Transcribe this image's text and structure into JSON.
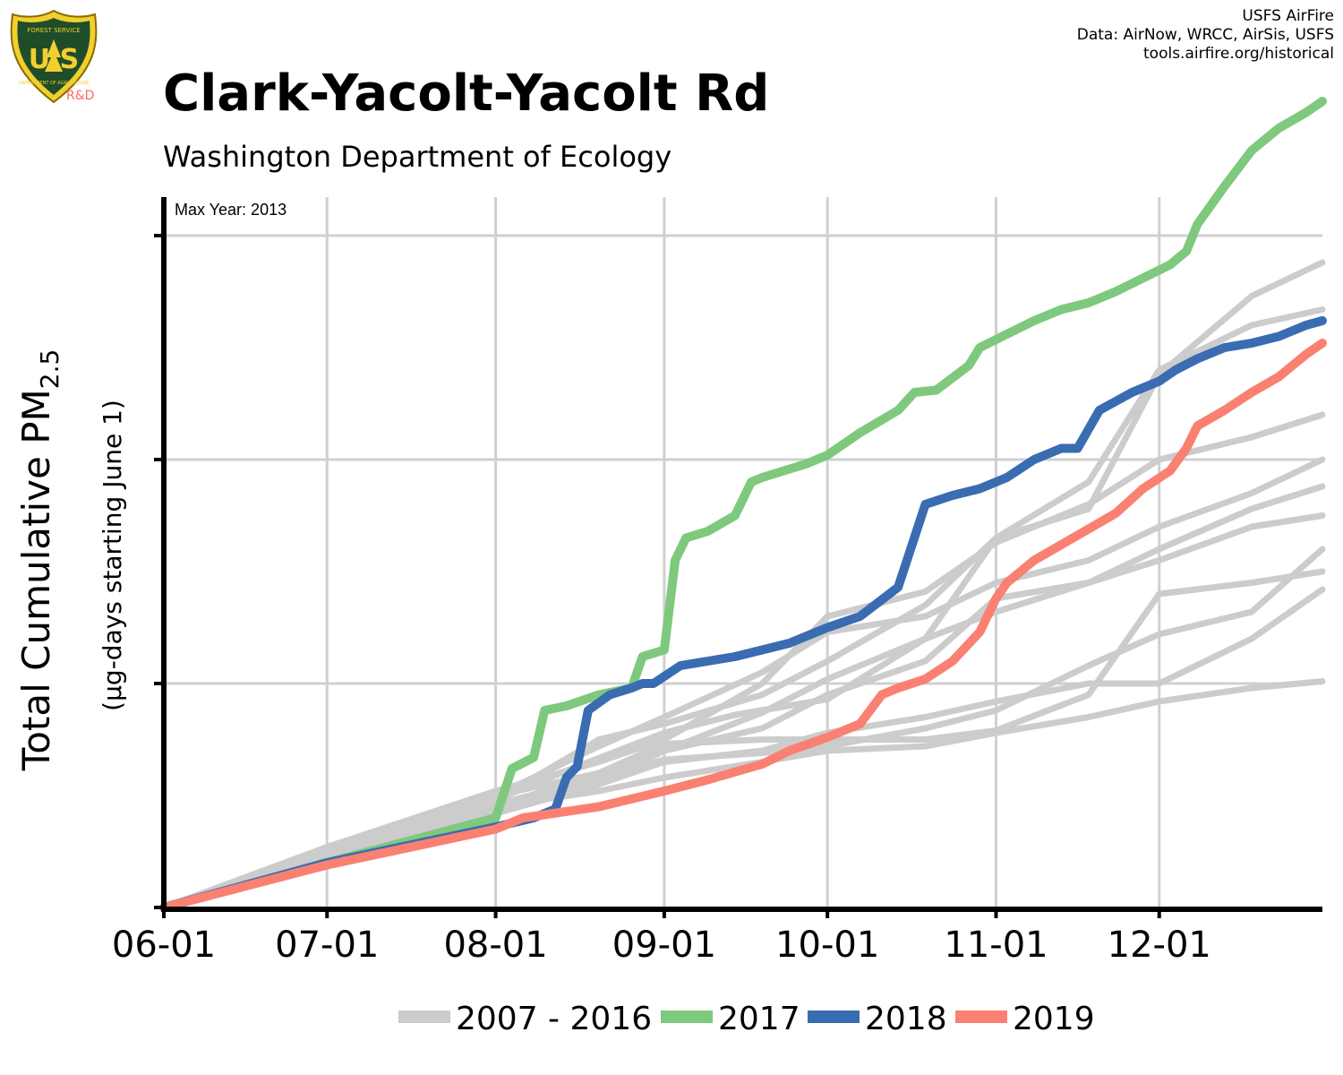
{
  "header": {
    "title": "Clark-Yacolt-Yacolt Rd",
    "subtitle": "Washington Department of Ecology",
    "logo_mark": "U S",
    "logo_text_top": "FOREST SERVICE",
    "logo_text_bottom": "DEPARTMENT OF AGRICULTURE",
    "logo_label": "R&D"
  },
  "credits": {
    "line1": "USFS AirFire",
    "line2": "Data: AirNow, WRCC, AirSis, USFS",
    "line3": "tools.airfire.org/historical"
  },
  "chart_data": {
    "type": "line",
    "annotation": "Max Year: 2013",
    "ylabel_main": "Total Cumulative PM",
    "ylabel_sub": "2.5",
    "ylabel_units": "(µg-days starting June 1)",
    "x_ticks": [
      "06-01",
      "07-01",
      "08-01",
      "09-01",
      "10-01",
      "11-01",
      "12-01"
    ],
    "x_tick_days": [
      0,
      30,
      61,
      92,
      122,
      153,
      183
    ],
    "xlim": [
      0,
      213
    ],
    "ylim": [
      0,
      4
    ],
    "y_gridlines": [
      1,
      2,
      3
    ],
    "y_ticks_labeled": false,
    "grid": true,
    "legend": {
      "placement": "bottom",
      "entries": [
        {
          "label": "2007 - 2016",
          "color": "#cccccc"
        },
        {
          "label": "2017",
          "color": "#7ec97d"
        },
        {
          "label": "2018",
          "color": "#3a6cb2"
        },
        {
          "label": "2019",
          "color": "#fa8072"
        }
      ]
    },
    "series": [
      {
        "group": "2007 - 2016",
        "color": "#cccccc",
        "x": [
          0,
          30,
          61,
          75,
          92,
          105,
          122,
          140,
          153,
          170,
          183,
          200,
          213
        ],
        "y": [
          0,
          0.23,
          0.48,
          0.62,
          0.78,
          0.86,
          0.93,
          1.2,
          1.65,
          1.78,
          2.38,
          2.73,
          2.88
        ]
      },
      {
        "group": "2007 - 2016",
        "color": "#cccccc",
        "x": [
          0,
          30,
          61,
          80,
          92,
          110,
          122,
          140,
          153,
          170,
          183,
          200,
          213
        ],
        "y": [
          0,
          0.24,
          0.48,
          0.75,
          0.82,
          0.95,
          1.1,
          1.35,
          1.65,
          1.9,
          2.4,
          2.6,
          2.67
        ]
      },
      {
        "group": "2007 - 2016",
        "color": "#cccccc",
        "x": [
          0,
          30,
          61,
          80,
          92,
          110,
          122,
          140,
          153,
          170,
          183,
          200,
          213
        ],
        "y": [
          0,
          0.25,
          0.5,
          0.72,
          0.85,
          1.05,
          1.23,
          1.3,
          1.45,
          1.55,
          1.7,
          1.85,
          2.0
        ]
      },
      {
        "group": "2007 - 2016",
        "color": "#cccccc",
        "x": [
          0,
          30,
          61,
          80,
          92,
          110,
          122,
          140,
          153,
          170,
          183,
          200,
          213
        ],
        "y": [
          0,
          0.27,
          0.52,
          0.65,
          0.75,
          1.0,
          1.3,
          1.41,
          1.63,
          1.8,
          2.0,
          2.1,
          2.2
        ]
      },
      {
        "group": "2007 - 2016",
        "color": "#cccccc",
        "x": [
          0,
          30,
          61,
          80,
          92,
          110,
          122,
          140,
          153,
          170,
          183,
          200,
          213
        ],
        "y": [
          0,
          0.25,
          0.5,
          0.6,
          0.7,
          0.8,
          0.95,
          1.1,
          1.38,
          1.45,
          1.55,
          1.7,
          1.75
        ]
      },
      {
        "group": "2007 - 2016",
        "color": "#cccccc",
        "x": [
          0,
          30,
          61,
          80,
          92,
          110,
          122,
          140,
          153,
          170,
          183,
          200,
          213
        ],
        "y": [
          0,
          0.22,
          0.45,
          0.6,
          0.73,
          0.75,
          0.75,
          0.75,
          0.79,
          0.95,
          1.4,
          1.45,
          1.5
        ]
      },
      {
        "group": "2007 - 2016",
        "color": "#cccccc",
        "x": [
          0,
          30,
          61,
          80,
          92,
          110,
          122,
          140,
          153,
          170,
          183,
          200,
          213
        ],
        "y": [
          0,
          0.2,
          0.42,
          0.55,
          0.65,
          0.7,
          0.78,
          0.85,
          0.92,
          1.0,
          1.0,
          1.2,
          1.42
        ]
      },
      {
        "group": "2007 - 2016",
        "color": "#cccccc",
        "x": [
          0,
          30,
          61,
          80,
          92,
          110,
          122,
          140,
          153,
          170,
          183,
          200,
          213
        ],
        "y": [
          0,
          0.23,
          0.45,
          0.52,
          0.58,
          0.65,
          0.7,
          0.72,
          0.78,
          0.85,
          0.92,
          0.98,
          1.01
        ]
      },
      {
        "group": "2007 - 2016",
        "color": "#cccccc",
        "x": [
          0,
          30,
          61,
          80,
          92,
          110,
          122,
          140,
          153,
          170,
          183,
          200,
          213
        ],
        "y": [
          0,
          0.24,
          0.46,
          0.58,
          0.66,
          0.69,
          0.72,
          0.8,
          0.88,
          1.08,
          1.22,
          1.32,
          1.6
        ]
      },
      {
        "group": "2007 - 2016",
        "color": "#cccccc",
        "x": [
          0,
          30,
          61,
          80,
          92,
          110,
          122,
          140,
          153,
          170,
          183,
          200,
          213
        ],
        "y": [
          0,
          0.21,
          0.44,
          0.56,
          0.7,
          0.87,
          1.02,
          1.2,
          1.32,
          1.45,
          1.6,
          1.78,
          1.88
        ]
      },
      {
        "name": "2017",
        "color": "#7ec97d",
        "x": [
          0,
          30,
          61,
          64,
          68,
          70,
          74,
          80,
          86,
          88,
          92,
          94,
          96,
          100,
          105,
          108,
          110,
          118,
          122,
          128,
          135,
          138,
          142,
          148,
          150,
          155,
          160,
          165,
          170,
          175,
          180,
          185,
          188,
          190,
          195,
          200,
          205,
          210,
          213
        ],
        "y": [
          0,
          0.2,
          0.4,
          0.62,
          0.67,
          0.88,
          0.9,
          0.95,
          0.98,
          1.12,
          1.15,
          1.55,
          1.65,
          1.68,
          1.75,
          1.9,
          1.92,
          1.98,
          2.02,
          2.12,
          2.22,
          2.3,
          2.31,
          2.42,
          2.5,
          2.56,
          2.62,
          2.67,
          2.7,
          2.75,
          2.81,
          2.87,
          2.93,
          3.05,
          3.22,
          3.38,
          3.48,
          3.55,
          3.6
        ]
      },
      {
        "name": "2018",
        "color": "#3a6cb2",
        "x": [
          0,
          30,
          61,
          68,
          72,
          74,
          76,
          78,
          82,
          86,
          88,
          90,
          95,
          105,
          115,
          122,
          128,
          135,
          140,
          145,
          150,
          155,
          160,
          165,
          168,
          172,
          178,
          183,
          186,
          190,
          195,
          200,
          205,
          210,
          213
        ],
        "y": [
          0,
          0.2,
          0.36,
          0.4,
          0.44,
          0.58,
          0.63,
          0.88,
          0.95,
          0.98,
          1.0,
          1.0,
          1.08,
          1.12,
          1.18,
          1.25,
          1.3,
          1.43,
          1.8,
          1.84,
          1.87,
          1.92,
          2.0,
          2.05,
          2.05,
          2.22,
          2.3,
          2.35,
          2.4,
          2.45,
          2.5,
          2.52,
          2.55,
          2.6,
          2.62
        ]
      },
      {
        "name": "2019",
        "color": "#fa8072",
        "x": [
          0,
          30,
          61,
          66,
          80,
          92,
          100,
          110,
          115,
          122,
          128,
          132,
          135,
          140,
          145,
          150,
          153,
          155,
          160,
          165,
          170,
          175,
          180,
          185,
          188,
          190,
          195,
          200,
          205,
          210,
          213
        ],
        "y": [
          0,
          0.19,
          0.35,
          0.4,
          0.45,
          0.52,
          0.57,
          0.64,
          0.7,
          0.76,
          0.82,
          0.95,
          0.98,
          1.02,
          1.1,
          1.23,
          1.38,
          1.45,
          1.55,
          1.62,
          1.69,
          1.76,
          1.87,
          1.95,
          2.05,
          2.15,
          2.22,
          2.3,
          2.37,
          2.47,
          2.52
        ]
      }
    ]
  }
}
